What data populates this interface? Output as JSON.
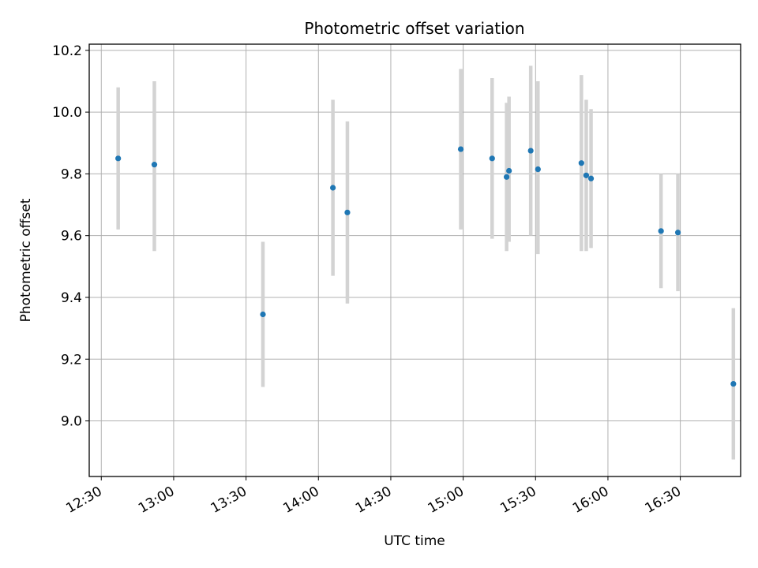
{
  "chart_data": {
    "type": "scatter",
    "title": "Photometric offset variation",
    "xlabel": "UTC time",
    "ylabel": "Photometric offset",
    "x_ticks": [
      "12:30",
      "13:00",
      "13:30",
      "14:00",
      "14:30",
      "15:00",
      "15:30",
      "16:00",
      "16:30"
    ],
    "y_ticks": [
      "9.0",
      "9.2",
      "9.4",
      "9.6",
      "9.8",
      "10.0",
      "10.2"
    ],
    "xlim": [
      "12:25",
      "16:55"
    ],
    "ylim": [
      8.82,
      10.22
    ],
    "grid": true,
    "legend": null,
    "marker_color": "#1f77b4",
    "errorbar_color": "#d3d3d3",
    "series": [
      {
        "points": [
          {
            "x": "12:37",
            "y": 9.85,
            "ylow": 9.62,
            "yhigh": 10.08
          },
          {
            "x": "12:52",
            "y": 9.83,
            "ylow": 9.55,
            "yhigh": 10.1
          },
          {
            "x": "13:37",
            "y": 9.345,
            "ylow": 9.11,
            "yhigh": 9.58
          },
          {
            "x": "14:06",
            "y": 9.755,
            "ylow": 9.47,
            "yhigh": 10.04
          },
          {
            "x": "14:12",
            "y": 9.675,
            "ylow": 9.38,
            "yhigh": 9.97
          },
          {
            "x": "14:59",
            "y": 9.88,
            "ylow": 9.62,
            "yhigh": 10.14
          },
          {
            "x": "15:12",
            "y": 9.85,
            "ylow": 9.59,
            "yhigh": 10.11
          },
          {
            "x": "15:18",
            "y": 9.79,
            "ylow": 9.55,
            "yhigh": 10.03
          },
          {
            "x": "15:19",
            "y": 9.81,
            "ylow": 9.58,
            "yhigh": 10.05
          },
          {
            "x": "15:28",
            "y": 9.875,
            "ylow": 9.6,
            "yhigh": 10.15
          },
          {
            "x": "15:31",
            "y": 9.815,
            "ylow": 9.54,
            "yhigh": 10.1
          },
          {
            "x": "15:49",
            "y": 9.835,
            "ylow": 9.55,
            "yhigh": 10.12
          },
          {
            "x": "15:51",
            "y": 9.795,
            "ylow": 9.55,
            "yhigh": 10.04
          },
          {
            "x": "15:53",
            "y": 9.785,
            "ylow": 9.56,
            "yhigh": 10.01
          },
          {
            "x": "16:22",
            "y": 9.615,
            "ylow": 9.43,
            "yhigh": 9.8
          },
          {
            "x": "16:29",
            "y": 9.61,
            "ylow": 9.42,
            "yhigh": 9.8
          },
          {
            "x": "16:52",
            "y": 9.12,
            "ylow": 8.875,
            "yhigh": 9.365
          }
        ]
      }
    ]
  }
}
